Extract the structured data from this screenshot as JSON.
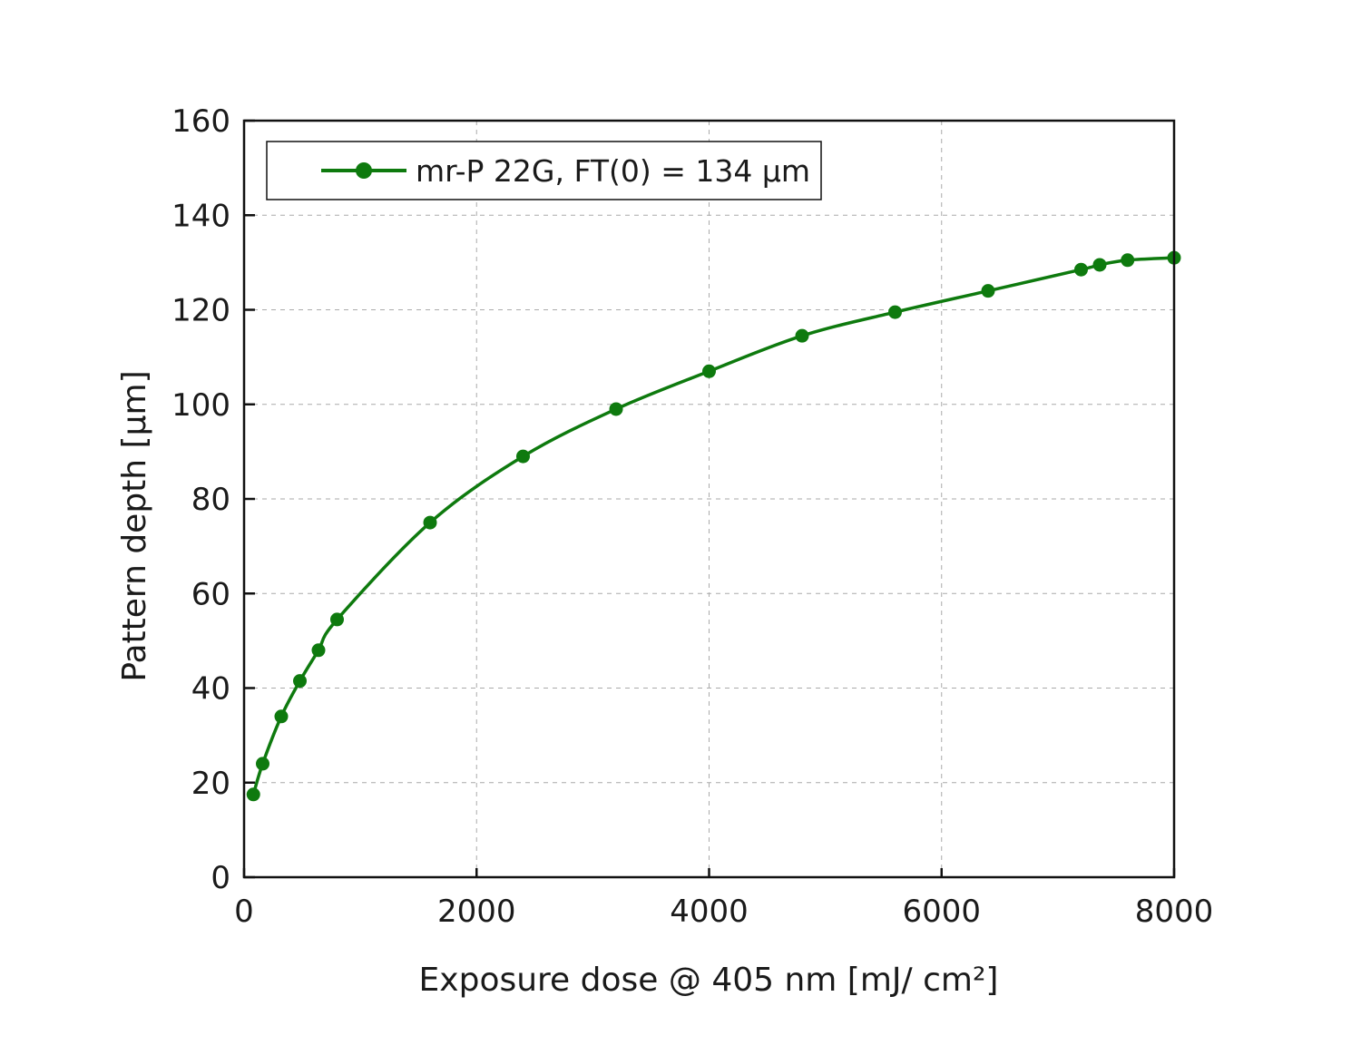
{
  "chart_data": {
    "type": "line",
    "title": "",
    "xlabel": "Exposure dose @ 405 nm [mJ/ cm²]",
    "ylabel": "Pattern depth [µm]",
    "xlim": [
      0,
      8000
    ],
    "ylim": [
      0,
      160
    ],
    "xticks": [
      "0",
      "2000",
      "4000",
      "6000",
      "8000"
    ],
    "yticks": [
      "0",
      "20",
      "40",
      "60",
      "80",
      "100",
      "120",
      "140",
      "160"
    ],
    "grid": true,
    "legend_position": "top-left",
    "series": [
      {
        "name": "mr-P 22G, FT(0) = 134 µm",
        "color": "#0e7a0e",
        "marker": "circle",
        "x": [
          80,
          160,
          320,
          480,
          640,
          800,
          1600,
          2400,
          3200,
          4000,
          4800,
          5600,
          6400,
          7200,
          7360,
          7600,
          8000
        ],
        "y": [
          17.5,
          24,
          34,
          41.5,
          48,
          54.5,
          75,
          89,
          99,
          107,
          114.5,
          119.5,
          124,
          128.5,
          129.5,
          130.5,
          131
        ]
      }
    ]
  }
}
